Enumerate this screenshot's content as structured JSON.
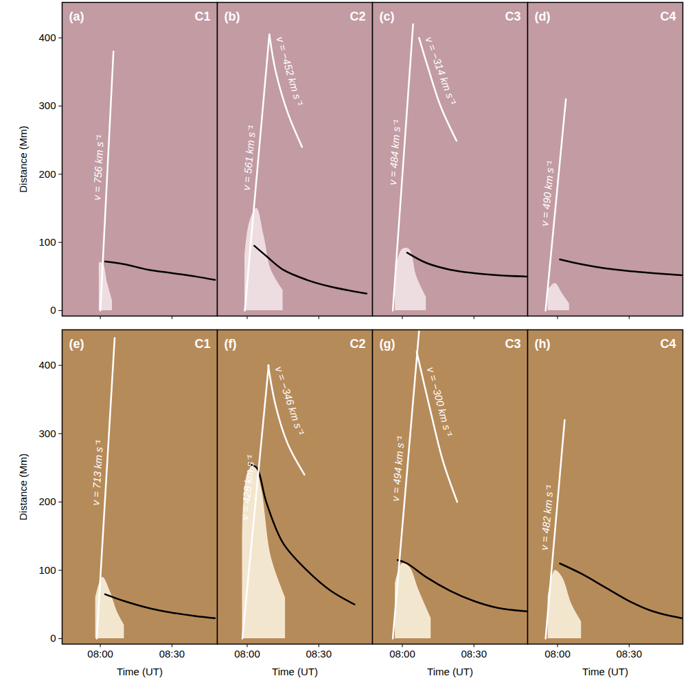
{
  "chart_data": [
    {
      "type": "line",
      "panel": "(a)",
      "title": "C1",
      "xlim": [
        464,
        529
      ],
      "xticks": [
        {
          "value": 480,
          "label": "08:00"
        },
        {
          "value": 510,
          "label": "08:30"
        }
      ],
      "ylim": [
        -8,
        452
      ],
      "yticks": [
        0,
        100,
        200,
        300,
        400
      ],
      "ylabel": "Distance (Mm)",
      "tick_labels": "y",
      "series": [
        {
          "type": "area",
          "color": "#eedde0",
          "x": [
            479.5,
            481,
            483,
            485
          ],
          "values": [
            70,
            70,
            40,
            15
          ]
        },
        {
          "type": "line",
          "color": "#000000",
          "x": [
            482,
            490,
            500,
            510,
            520,
            528
          ],
          "values": [
            72,
            68,
            60,
            55,
            50,
            45
          ]
        },
        {
          "type": "line",
          "color": "#ffffff",
          "x": [
            480,
            485.5
          ],
          "values": [
            0,
            380
          ],
          "annotation": "v = 756 km s⁻¹"
        }
      ]
    },
    {
      "type": "line",
      "panel": "(b)",
      "title": "C2",
      "xlim": [
        467.5,
        532.5
      ],
      "xticks": [
        {
          "value": 480,
          "label": "08:00"
        },
        {
          "value": 510,
          "label": "08:30"
        }
      ],
      "ylim": [
        -8,
        452
      ],
      "yticks": [
        0,
        100,
        200,
        300,
        400
      ],
      "tick_labels": false,
      "series": [
        {
          "type": "area",
          "color": "#eedde0",
          "x": [
            479,
            481,
            484,
            487,
            490,
            495
          ],
          "values": [
            80,
            130,
            150,
            110,
            60,
            30
          ]
        },
        {
          "type": "line",
          "color": "#000000",
          "x": [
            483,
            488,
            495,
            505,
            515,
            530
          ],
          "values": [
            95,
            80,
            60,
            45,
            35,
            25
          ]
        },
        {
          "type": "line",
          "color": "#ffffff",
          "x": [
            479,
            489.3
          ],
          "values": [
            0,
            405
          ],
          "annotation": "v = 561 km s⁻¹"
        },
        {
          "type": "line",
          "color": "#ffffff",
          "x": [
            489.3,
            492,
            497,
            503
          ],
          "values": [
            405,
            350,
            290,
            240
          ],
          "annotation": "v = −452 km s⁻¹"
        }
      ]
    },
    {
      "type": "line",
      "panel": "(c)",
      "title": "C3",
      "xlim": [
        467.5,
        532.5
      ],
      "xticks": [
        {
          "value": 480,
          "label": "08:00"
        },
        {
          "value": 510,
          "label": "08:30"
        }
      ],
      "ylim": [
        -8,
        452
      ],
      "yticks": [
        0,
        100,
        200,
        300,
        400
      ],
      "tick_labels": false,
      "series": [
        {
          "type": "area",
          "color": "#eedde0",
          "x": [
            477,
            480,
            483,
            486,
            490
          ],
          "values": [
            60,
            90,
            90,
            50,
            20
          ]
        },
        {
          "type": "line",
          "color": "#000000",
          "x": [
            482,
            490,
            500,
            510,
            520,
            532
          ],
          "values": [
            85,
            70,
            60,
            55,
            52,
            50
          ]
        },
        {
          "type": "line",
          "color": "#ffffff",
          "x": [
            476,
            484.5
          ],
          "values": [
            0,
            420
          ],
          "annotation": "v = 484 km s⁻¹"
        },
        {
          "type": "line",
          "color": "#ffffff",
          "x": [
            487,
            490.7,
            496,
            502.7
          ],
          "values": [
            400,
            357,
            300,
            249
          ],
          "annotation": "v = −314 km s⁻¹"
        }
      ]
    },
    {
      "type": "line",
      "panel": "(d)",
      "title": "C4",
      "xlim": [
        467.5,
        532.5
      ],
      "xticks": [
        {
          "value": 480,
          "label": "08:00"
        },
        {
          "value": 510,
          "label": "08:30"
        }
      ],
      "ylim": [
        -8,
        452
      ],
      "yticks": [
        0,
        100,
        200,
        300,
        400
      ],
      "tick_labels": false,
      "series": [
        {
          "type": "area",
          "color": "#eedde0",
          "x": [
            476,
            479,
            482,
            485
          ],
          "values": [
            30,
            40,
            25,
            10
          ]
        },
        {
          "type": "line",
          "color": "#000000",
          "x": [
            481,
            490,
            500,
            510,
            520,
            532
          ],
          "values": [
            75,
            68,
            62,
            58,
            55,
            52
          ]
        },
        {
          "type": "line",
          "color": "#ffffff",
          "x": [
            475,
            483.5
          ],
          "values": [
            0,
            310
          ],
          "annotation": "v = 490 km s⁻¹"
        }
      ]
    },
    {
      "type": "line",
      "panel": "(e)",
      "title": "C1",
      "xlim": [
        464,
        529
      ],
      "xticks": [
        {
          "value": 480,
          "label": "08:00"
        },
        {
          "value": 510,
          "label": "08:30"
        }
      ],
      "ylim": [
        -8,
        452
      ],
      "yticks": [
        0,
        100,
        200,
        300,
        400
      ],
      "xlabel": "Time (UT)",
      "ylabel": "Distance (Mm)",
      "tick_labels": true,
      "series": [
        {
          "type": "area",
          "color": "#f3e6cf",
          "x": [
            478,
            481,
            484,
            487,
            490
          ],
          "values": [
            60,
            90,
            70,
            40,
            20
          ]
        },
        {
          "type": "line",
          "color": "#000000",
          "x": [
            482,
            490,
            500,
            510,
            520,
            528
          ],
          "values": [
            65,
            55,
            45,
            38,
            33,
            30
          ]
        },
        {
          "type": "line",
          "color": "#ffffff",
          "x": [
            478.5,
            486
          ],
          "values": [
            0,
            440
          ],
          "annotation": "v = 713 km s⁻¹"
        }
      ]
    },
    {
      "type": "line",
      "panel": "(f)",
      "title": "C2",
      "xlim": [
        467.5,
        532.5
      ],
      "xticks": [
        {
          "value": 480,
          "label": "08:00"
        },
        {
          "value": 510,
          "label": "08:30"
        }
      ],
      "ylim": [
        -8,
        452
      ],
      "yticks": [
        0,
        100,
        200,
        300,
        400
      ],
      "xlabel": "Time (UT)",
      "tick_labels": "x",
      "series": [
        {
          "type": "area",
          "color": "#f3e6cf",
          "x": [
            478,
            480,
            483,
            486,
            490,
            496
          ],
          "values": [
            150,
            240,
            255,
            220,
            120,
            60
          ]
        },
        {
          "type": "line",
          "color": "#000000",
          "x": [
            481,
            484,
            488,
            495,
            505,
            515,
            525
          ],
          "values": [
            255,
            250,
            200,
            140,
            100,
            70,
            50
          ]
        },
        {
          "type": "line",
          "color": "#ffffff",
          "x": [
            478,
            489
          ],
          "values": [
            0,
            400
          ],
          "annotation": "v = 428 km s⁻¹"
        },
        {
          "type": "line",
          "color": "#ffffff",
          "x": [
            488.8,
            492,
            497,
            504
          ],
          "values": [
            400,
            340,
            285,
            240
          ],
          "annotation": "v = −346 km s⁻¹"
        }
      ]
    },
    {
      "type": "line",
      "panel": "(g)",
      "title": "C3",
      "xlim": [
        467.5,
        532.5
      ],
      "xticks": [
        {
          "value": 480,
          "label": "08:00"
        },
        {
          "value": 510,
          "label": "08:30"
        }
      ],
      "ylim": [
        -8,
        452
      ],
      "yticks": [
        0,
        100,
        200,
        300,
        400
      ],
      "xlabel": "Time (UT)",
      "tick_labels": "x",
      "series": [
        {
          "type": "area",
          "color": "#f3e6cf",
          "x": [
            477,
            480,
            483,
            487,
            492
          ],
          "values": [
            80,
            110,
            105,
            70,
            30
          ]
        },
        {
          "type": "line",
          "color": "#000000",
          "x": [
            478,
            482,
            490,
            500,
            510,
            520,
            532
          ],
          "values": [
            115,
            110,
            90,
            70,
            55,
            45,
            40
          ]
        },
        {
          "type": "line",
          "color": "#ffffff",
          "x": [
            476,
            487
          ],
          "values": [
            0,
            450
          ],
          "annotation": "v = 494 km s⁻¹"
        },
        {
          "type": "line",
          "color": "#ffffff",
          "x": [
            486,
            492,
            497,
            503
          ],
          "values": [
            420,
            330,
            260,
            200
          ],
          "annotation": "v = −300 km s⁻¹"
        }
      ]
    },
    {
      "type": "line",
      "panel": "(h)",
      "title": "C4",
      "xlim": [
        467.5,
        532.5
      ],
      "xticks": [
        {
          "value": 480,
          "label": "08:00"
        },
        {
          "value": 510,
          "label": "08:30"
        }
      ],
      "ylim": [
        -8,
        452
      ],
      "yticks": [
        0,
        100,
        200,
        300,
        400
      ],
      "xlabel": "Time (UT)",
      "tick_labels": "x",
      "series": [
        {
          "type": "area",
          "color": "#f3e6cf",
          "x": [
            476,
            479,
            482,
            486,
            490
          ],
          "values": [
            60,
            100,
            90,
            50,
            25
          ]
        },
        {
          "type": "line",
          "color": "#000000",
          "x": [
            481,
            490,
            500,
            510,
            520,
            532
          ],
          "values": [
            110,
            95,
            75,
            55,
            40,
            30
          ]
        },
        {
          "type": "line",
          "color": "#ffffff",
          "x": [
            475,
            483
          ],
          "values": [
            0,
            320
          ],
          "annotation": "v = 482 km s⁻¹"
        }
      ]
    }
  ]
}
